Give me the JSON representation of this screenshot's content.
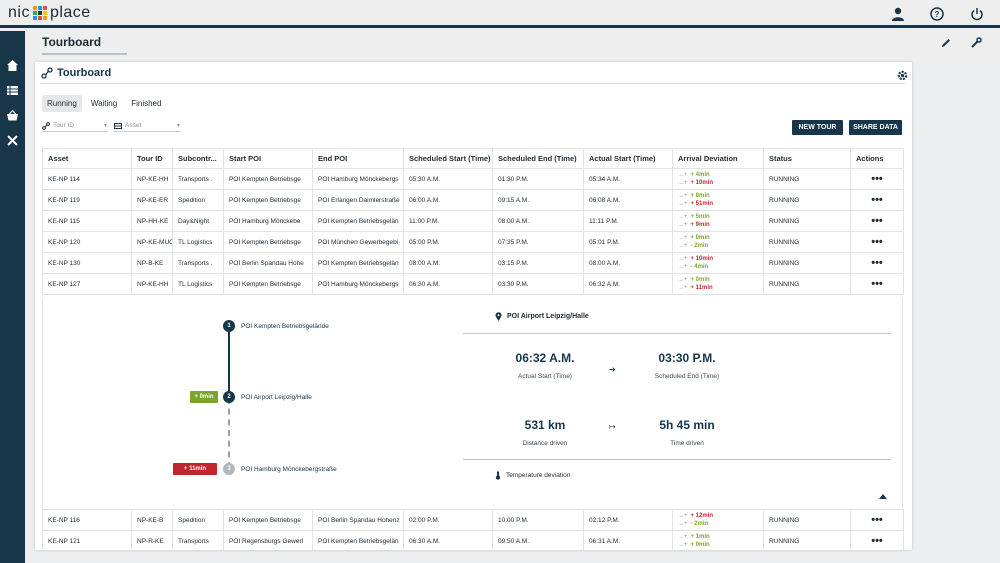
{
  "app": {
    "logo_left": "nic",
    "logo_right": "place"
  },
  "page": {
    "title": "Tourboard"
  },
  "card": {
    "title": "Tourboard"
  },
  "tabs": [
    "Running",
    "Waiting",
    "Finished"
  ],
  "filters": {
    "tour_id": "Tour ID",
    "asset": "Asset"
  },
  "buttons": {
    "new_tour": "NEW TOUR",
    "share_data": "SHARE DATA"
  },
  "table": {
    "columns": [
      "Asset",
      "Tour ID",
      "Subcontr...",
      "Start POI",
      "End POI",
      "Scheduled Start (Time)",
      "Scheduled End (Time)",
      "Actual Start (Time)",
      "Arrival Deviation",
      "Status",
      "Actions"
    ],
    "rows": [
      {
        "asset": "KE-NP 114",
        "tour": "NP-KE-HH",
        "sub": "Transports .",
        "start": "POI Kempten Betriebsge",
        "end": "POI Hamburg Mönckebergs",
        "sstart": "05:30 A.M.",
        "send": "01:30 P.M.",
        "astart": "05:34 A.M.",
        "dev1": "+ 4min",
        "dev2": "+ 10min",
        "status": "RUNNING"
      },
      {
        "asset": "KE-NP 119",
        "tour": "NP-KE-ER",
        "sub": "Spedition",
        "start": "POI Kempten Betriebsge",
        "end": "POI Erlangen Daimlerstraße",
        "sstart": "06:00 A.M.",
        "send": "09:15 A.M.",
        "astart": "06:08 A.M.",
        "dev1": "+ 8min",
        "dev2": "+ 51min",
        "status": "RUNNING"
      },
      {
        "asset": "KE-NP 115",
        "tour": "NP-HH-KE",
        "sub": "Day&Night",
        "start": "POI Hamburg Mönckebe",
        "end": "POI Kempten Betriebsgelän",
        "sstart": "11:00 P.M.",
        "send": "08:00 A.M.",
        "astart": "11:11 P.M.",
        "dev1": "+ 5min",
        "dev2": "+ 9min",
        "status": "RUNNING"
      },
      {
        "asset": "KE-NP 120",
        "tour": "NP-KE-MUC",
        "sub": "TL Logistics",
        "start": "POI Kempten Betriebsge",
        "end": "POI München Gewerbegebi",
        "sstart": "05:00 P.M.",
        "send": "07:35 P.M.",
        "astart": "05:01 P.M.",
        "dev1": "+ 0min",
        "dev2": "- 2min",
        "status": "RUNNING"
      },
      {
        "asset": "KE-NP 130",
        "tour": "NP-B-KE",
        "sub": "Transports .",
        "start": "POI Berlin Spandau Hohe",
        "end": "POI Kempten Betriebsgelän",
        "sstart": "08:00 A.M.",
        "send": "03:15 P.M.",
        "astart": "08:00 A.M.",
        "dev1": "+ 10min",
        "dev2": "- 4min",
        "status": "RUNNING"
      },
      {
        "asset": "KE-NP 127",
        "tour": "NP-KE-HH",
        "sub": "TL Logistics",
        "start": "POI Kempten Betriebsge",
        "end": "POI Hamburg Mönckebergs",
        "sstart": "06:30 A.M.",
        "send": "03:30 P.M.",
        "astart": "06:32 A.M.",
        "dev1": "+ 0min",
        "dev2": "+ 11min",
        "status": "RUNNING"
      }
    ],
    "rows_after": [
      {
        "asset": "KE-NP 116",
        "tour": "NP-KE-B",
        "sub": "Spedition",
        "start": "POI Kempten Betriebsge",
        "end": "POI Berlin Spandau Hohenz",
        "sstart": "02:00 P.M.",
        "send": "10:00 P.M.",
        "astart": "02:12 P.M.",
        "dev1": "+ 12min",
        "dev2": "- 2min",
        "status": "RUNNING"
      },
      {
        "asset": "KE-NP 121",
        "tour": "NP-R-KE",
        "sub": "Transports",
        "start": "POI Regensburgs Gewerl",
        "end": "POI Kempten Betriebsgelän",
        "sstart": "06:30 A.M.",
        "send": "09:50 A.M.",
        "astart": "06:31 A.M.",
        "dev1": "+ 1min",
        "dev2": "+ 0min",
        "status": "RUNNING"
      }
    ]
  },
  "detail": {
    "stops": [
      {
        "num": "1",
        "name": "POI Kempten Betriebsgelände"
      },
      {
        "num": "2",
        "name": "POI Airport Leipzig/Halle",
        "badge": "+ 0min"
      },
      {
        "num": "3",
        "name": "POI Hamburg Mönckebergstraße",
        "badge": "+ 11min"
      }
    ],
    "current_poi": "POI Airport Leipzig/Halle",
    "actual_start": "06:32 A.M.",
    "actual_start_label": "Actual Start (Time)",
    "scheduled_end": "03:30 P.M.",
    "scheduled_end_label": "Scheduled End (Time)",
    "distance": "531 km",
    "distance_label": "Distance driven",
    "time": "5h 45 min",
    "time_label": "Time driven",
    "temperature": "Temperature deviation"
  },
  "colors": {
    "brand": "#17364a",
    "positive": "#7ba52c",
    "negative": "#c0272d"
  },
  "icons": [
    "user-icon",
    "help-icon",
    "power-icon",
    "home-icon",
    "list-icon",
    "basket-icon",
    "tools-icon",
    "pencil-icon",
    "wrench-icon",
    "route-icon",
    "gear-icon",
    "location-pin-icon",
    "thermometer-icon",
    "actions-icon"
  ]
}
